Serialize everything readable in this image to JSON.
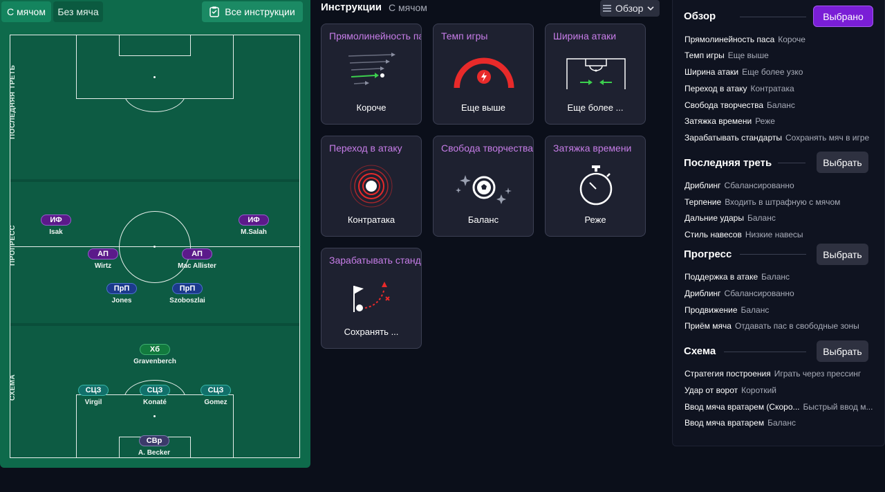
{
  "left_panel": {
    "tabs": {
      "with_ball": "С мячом",
      "without_ball": "Без мяча"
    },
    "all_instructions": "Все инструкции",
    "zones": {
      "final_third": "ПОСЛЕДНЯЯ ТРЕТЬ",
      "progress": "ПРОГРЕСС",
      "scheme": "СХЕМА"
    },
    "players": [
      {
        "pos": "ИФ",
        "name": "Isak"
      },
      {
        "pos": "ИФ",
        "name": "M.Salah"
      },
      {
        "pos": "АП",
        "name": "Wirtz"
      },
      {
        "pos": "АП",
        "name": "Mac Allister"
      },
      {
        "pos": "ПрП",
        "name": "Jones"
      },
      {
        "pos": "ПрП",
        "name": "Szoboszlai"
      },
      {
        "pos": "Хб",
        "name": "Gravenberch"
      },
      {
        "pos": "СЦЗ",
        "name": "Virgil"
      },
      {
        "pos": "СЦЗ",
        "name": "Konaté"
      },
      {
        "pos": "СЦЗ",
        "name": "Gomez"
      },
      {
        "pos": "СВр",
        "name": "A. Becker"
      }
    ]
  },
  "instructions": {
    "title": "Инструкции",
    "subtitle": "С мячом",
    "view_select": "Обзор",
    "cards": [
      {
        "title": "Прямолинейность паса",
        "value": "Короче",
        "icon": "pass-directness-icon"
      },
      {
        "title": "Темп игры",
        "value": "Еще выше",
        "icon": "tempo-gauge-icon"
      },
      {
        "title": "Ширина атаки",
        "value": "Еще более ...",
        "icon": "attack-width-icon"
      },
      {
        "title": "Переход в атаку",
        "value": "Контратака",
        "icon": "transition-target-icon"
      },
      {
        "title": "Свобода творчества",
        "value": "Баланс",
        "icon": "creative-freedom-ball-icon"
      },
      {
        "title": "Затяжка времени",
        "value": "Реже",
        "icon": "stopwatch-icon"
      },
      {
        "title": "Зарабатывать стандарты",
        "value": "Сохранять ...",
        "icon": "set-piece-flag-icon"
      }
    ]
  },
  "summary": {
    "sections": [
      {
        "title": "Обзор",
        "button": "Выбрано",
        "rows": [
          {
            "k": "Прямолинейность паса",
            "v": "Короче"
          },
          {
            "k": "Темп игры",
            "v": "Еще выше"
          },
          {
            "k": "Ширина атаки",
            "v": "Еще более узко"
          },
          {
            "k": "Переход в атаку",
            "v": "Контратака"
          },
          {
            "k": "Свобода творчества",
            "v": "Баланс"
          },
          {
            "k": "Затяжка времени",
            "v": "Реже"
          },
          {
            "k": "Зарабатывать стандарты",
            "v": "Сохранять мяч в игре"
          }
        ]
      },
      {
        "title": "Последняя треть",
        "button": "Выбрать",
        "rows": [
          {
            "k": "Дриблинг",
            "v": "Сбалансированно"
          },
          {
            "k": "Терпение",
            "v": "Входить в штрафную с мячом"
          },
          {
            "k": "Дальние удары",
            "v": "Баланс"
          },
          {
            "k": "Стиль навесов",
            "v": "Низкие навесы"
          }
        ]
      },
      {
        "title": "Прогресс",
        "button": "Выбрать",
        "rows": [
          {
            "k": "Поддержка в атаке",
            "v": "Баланс"
          },
          {
            "k": "Дриблинг",
            "v": "Сбалансированно"
          },
          {
            "k": "Продвижение",
            "v": "Баланс"
          },
          {
            "k": "Приём мяча",
            "v": "Отдавать пас в свободные зоны"
          }
        ]
      },
      {
        "title": "Схема",
        "button": "Выбрать",
        "rows": [
          {
            "k": "Стратегия построения",
            "v": "Играть через прессинг"
          },
          {
            "k": "Удар от ворот",
            "v": "Короткий"
          },
          {
            "k": "Ввод мяча вратарем (Скоро...",
            "v": "Быстрый ввод м..."
          },
          {
            "k": "Ввод мяча вратарем",
            "v": "Баланс"
          }
        ]
      }
    ]
  },
  "colors": {
    "accent": "#7a1ed6",
    "card_title": "#c77de8",
    "pitch": "#0a4e3a",
    "panel": "#0e6a4b"
  }
}
